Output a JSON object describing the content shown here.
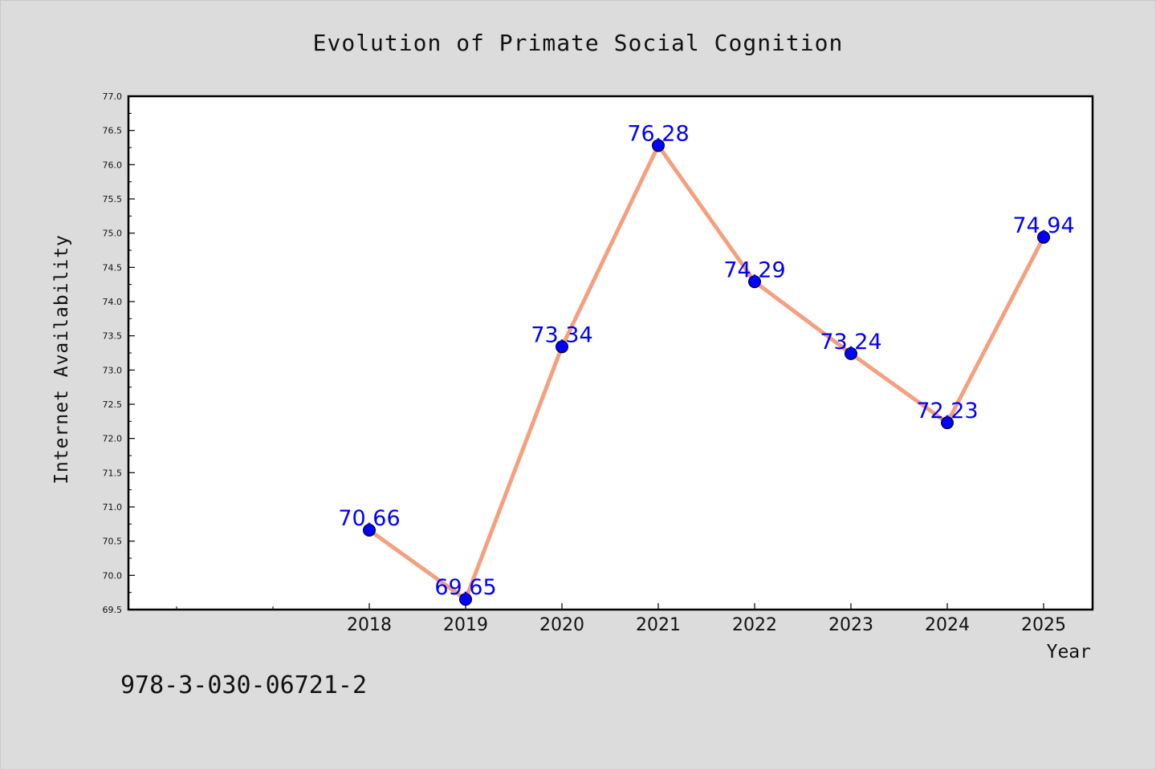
{
  "chart_data": {
    "type": "line",
    "title": "Evolution of Primate Social Cognition",
    "xlabel": "Year",
    "ylabel": "Internet Availability",
    "categories": [
      "2018",
      "2019",
      "2020",
      "2021",
      "2022",
      "2023",
      "2024",
      "2025"
    ],
    "series": [
      {
        "values": [
          70.66,
          69.65,
          73.34,
          76.28,
          74.29,
          73.24,
          72.23,
          74.94
        ],
        "labels": [
          "70.66",
          "69.65",
          "73.34",
          "76.28",
          "74.29",
          "73.24",
          "72.23",
          "74.94"
        ]
      }
    ],
    "ylim": [
      69.5,
      77.0
    ],
    "yticks": [
      "69.5",
      "70.0",
      "70.5",
      "71.0",
      "71.5",
      "72.0",
      "72.5",
      "73.0",
      "73.5",
      "74.0",
      "74.5",
      "75.0",
      "75.5",
      "76.0",
      "76.5",
      "77.0"
    ],
    "grid": false,
    "legend": "none",
    "colors": {
      "line": "#f4a07f",
      "marker": "#0000ff",
      "data_label": "#0000ff",
      "background": "#dcdcdc",
      "plot_background": "#ffffff"
    }
  },
  "footer": {
    "identifier": "978-3-030-06721-2"
  }
}
